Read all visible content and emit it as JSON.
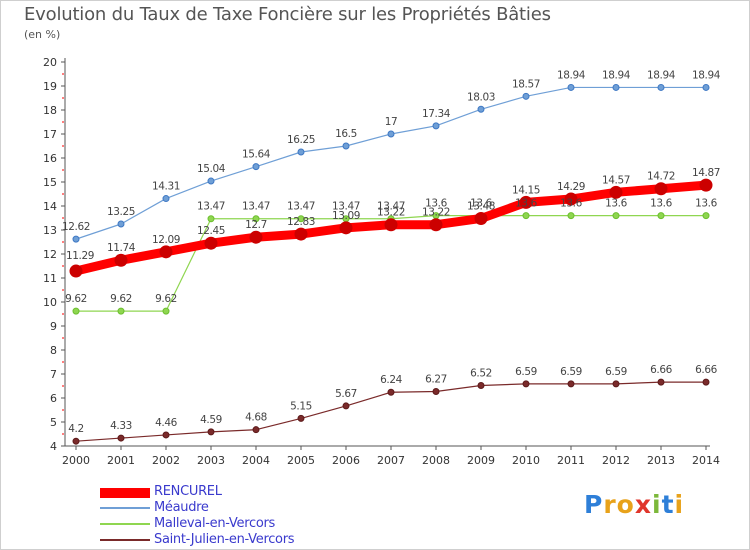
{
  "title": "Evolution du Taux de Taxe Foncière sur les Propriétés Bâties",
  "subtitle": "(en %)",
  "logo": {
    "text": "Proxiti",
    "letters": [
      {
        "ch": "P",
        "color": "#2e7fd8"
      },
      {
        "ch": "r",
        "color": "#e8a21a"
      },
      {
        "ch": "o",
        "color": "#e8a21a"
      },
      {
        "ch": "x",
        "color": "#e0362b"
      },
      {
        "ch": "i",
        "color": "#7cb83a"
      },
      {
        "ch": "t",
        "color": "#2e7fd8"
      },
      {
        "ch": "i",
        "color": "#e8a21a"
      }
    ]
  },
  "chart_data": {
    "type": "line",
    "title": "Evolution du Taux de Taxe Foncière sur les Propriétés Bâties",
    "subtitle": "(en %)",
    "x": [
      "2000",
      "2001",
      "2002",
      "2003",
      "2004",
      "2005",
      "2006",
      "2007",
      "2008",
      "2009",
      "2010",
      "2011",
      "2012",
      "2013",
      "2014"
    ],
    "ylim": [
      4,
      20
    ],
    "yticks": [
      "4",
      "5",
      "6",
      "7",
      "8",
      "9",
      "10",
      "11",
      "12",
      "13",
      "14",
      "15",
      "16",
      "17",
      "18",
      "19",
      "20"
    ],
    "grid": false,
    "legend_position": "bottom-left",
    "series": [
      {
        "name": "RENCUREL",
        "color": "#ff0000",
        "markerColor": "#cc0000",
        "thick": true,
        "values": [
          11.29,
          11.74,
          12.09,
          12.45,
          12.7,
          12.83,
          13.09,
          13.22,
          13.22,
          13.48,
          14.15,
          14.29,
          14.57,
          14.72,
          14.87
        ],
        "labels": [
          "11.29",
          "11.74",
          "12.09",
          "12.45",
          "12.7",
          "12.83",
          "13.09",
          "13.22",
          "13.22",
          "13.48",
          "14.15",
          "14.29",
          "14.57",
          "14.72",
          "14.87"
        ]
      },
      {
        "name": "Méaudre",
        "color": "#6f9fd6",
        "markerColor": "#3e78c4",
        "thick": false,
        "values": [
          12.62,
          13.25,
          14.31,
          15.04,
          15.64,
          16.25,
          16.5,
          17,
          17.34,
          18.03,
          18.57,
          18.94,
          18.94,
          18.94,
          18.94
        ],
        "labels": [
          "12.62",
          "13.25",
          "14.31",
          "15.04",
          "15.64",
          "16.25",
          "16.5",
          "17",
          "17.34",
          "18.03",
          "18.57",
          "18.94",
          "18.94",
          "18.94",
          "18.94"
        ]
      },
      {
        "name": "Malleval-en-Vercors",
        "color": "#8fd650",
        "markerColor": "#6cbf2f",
        "thick": false,
        "values": [
          9.62,
          9.62,
          9.62,
          13.47,
          13.47,
          13.47,
          13.47,
          13.47,
          13.6,
          13.6,
          13.6,
          13.6,
          13.6,
          13.6,
          13.6
        ],
        "labels": [
          "9.62",
          "9.62",
          "9.62",
          "13.47",
          "13.47",
          "13.47",
          "13.47",
          "13.47",
          "13.6",
          "13.6",
          "13.6",
          "13.6",
          "13.6",
          "13.6",
          "13.6"
        ]
      },
      {
        "name": "Saint-Julien-en-Vercors",
        "color": "#7a2a2a",
        "markerColor": "#5c1a1a",
        "thick": false,
        "values": [
          4.2,
          4.33,
          4.46,
          4.59,
          4.68,
          5.15,
          5.67,
          6.24,
          6.27,
          6.52,
          6.59,
          6.59,
          6.59,
          6.66,
          6.66
        ],
        "labels": [
          "4.2",
          "4.33",
          "4.46",
          "4.59",
          "4.68",
          "5.15",
          "5.67",
          "6.24",
          "6.27",
          "6.52",
          "6.59",
          "6.59",
          "6.59",
          "6.66",
          "6.66"
        ]
      }
    ]
  }
}
